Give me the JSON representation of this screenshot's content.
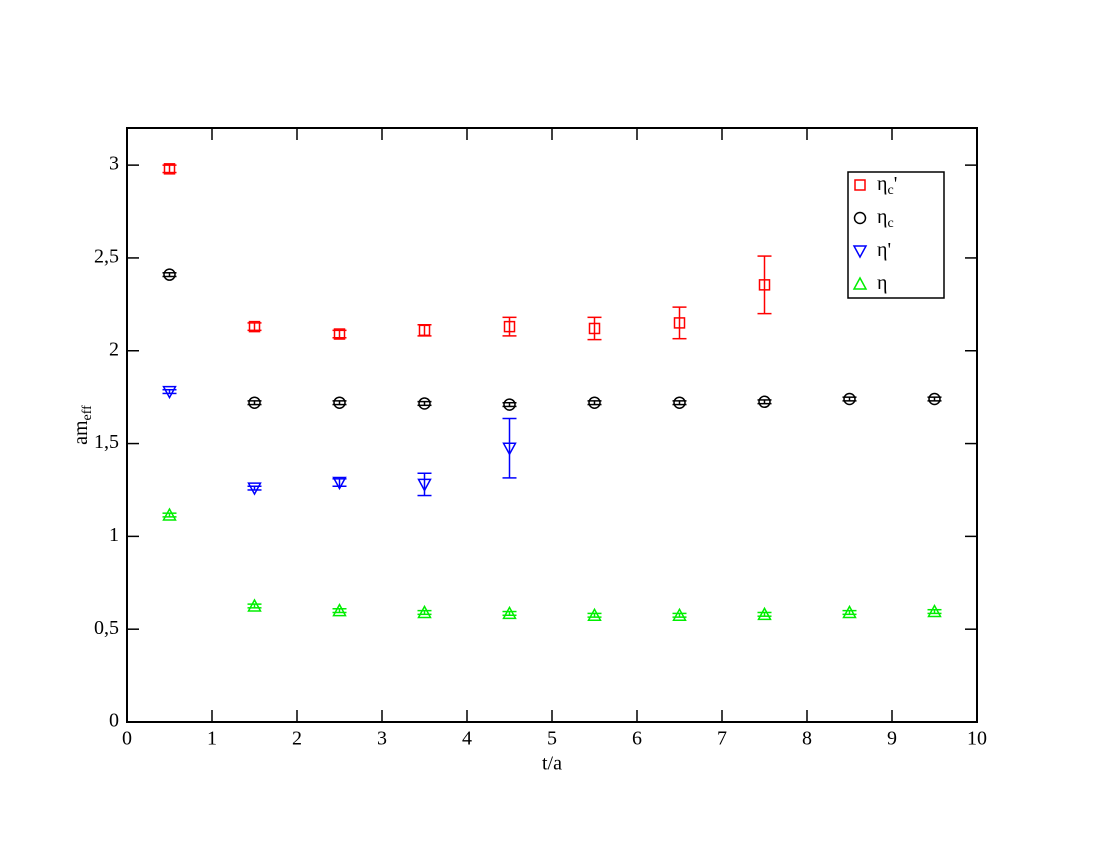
{
  "chart_data": {
    "type": "scatter",
    "xlabel": "t/a",
    "ylabel": "am",
    "ylabel_sub": "eff",
    "xlim": [
      0,
      10
    ],
    "ylim": [
      0,
      3.2
    ],
    "xticks": [
      0,
      1,
      2,
      3,
      4,
      5,
      6,
      7,
      8,
      9,
      10
    ],
    "yticks": [
      0,
      {
        "value": 0.5,
        "label": "0,5"
      },
      1,
      {
        "value": 1.5,
        "label": "1,5"
      },
      2,
      {
        "value": 2.5,
        "label": "2,5"
      },
      3
    ],
    "legend": "upper right",
    "series": [
      {
        "name": "η",
        "subscript": "c",
        "prime": "'",
        "color": "#ff0000",
        "marker": "square",
        "x": [
          0.5,
          1.5,
          2.5,
          3.5,
          4.5,
          5.5,
          6.5,
          7.5
        ],
        "values": [
          2.98,
          2.13,
          2.09,
          2.11,
          2.13,
          2.12,
          2.15,
          2.355
        ],
        "errors": [
          0.02,
          0.02,
          0.02,
          0.03,
          0.05,
          0.06,
          0.085,
          0.155
        ]
      },
      {
        "name": "η",
        "subscript": "c",
        "color": "#000000",
        "marker": "circle",
        "x": [
          0.5,
          1.5,
          2.5,
          3.5,
          4.5,
          5.5,
          6.5,
          7.5,
          8.5,
          9.5
        ],
        "values": [
          2.41,
          1.72,
          1.72,
          1.716,
          1.71,
          1.72,
          1.72,
          1.725,
          1.74,
          1.74
        ],
        "errors": [
          0.01,
          0.01,
          0.01,
          0.01,
          0.01,
          0.01,
          0.01,
          0.01,
          0.01,
          0.01
        ]
      },
      {
        "name": "η",
        "prime": "'",
        "color": "#0000ff",
        "marker": "triangle-down",
        "x": [
          0.5,
          1.5,
          2.5,
          3.5,
          4.5
        ],
        "values": [
          1.78,
          1.26,
          1.29,
          1.28,
          1.475
        ],
        "errors": [
          0.01,
          0.01,
          0.02,
          0.06,
          0.16
        ]
      },
      {
        "name": "η",
        "color": "#00ee00",
        "marker": "triangle-up",
        "x": [
          0.5,
          1.5,
          2.5,
          3.5,
          4.5,
          5.5,
          6.5,
          7.5,
          8.5,
          9.5
        ],
        "values": [
          1.115,
          0.625,
          0.6,
          0.59,
          0.585,
          0.575,
          0.575,
          0.58,
          0.59,
          0.595
        ],
        "errors": [
          0.01,
          0.01,
          0.01,
          0.01,
          0.01,
          0.01,
          0.01,
          0.01,
          0.01,
          0.01
        ]
      }
    ]
  }
}
